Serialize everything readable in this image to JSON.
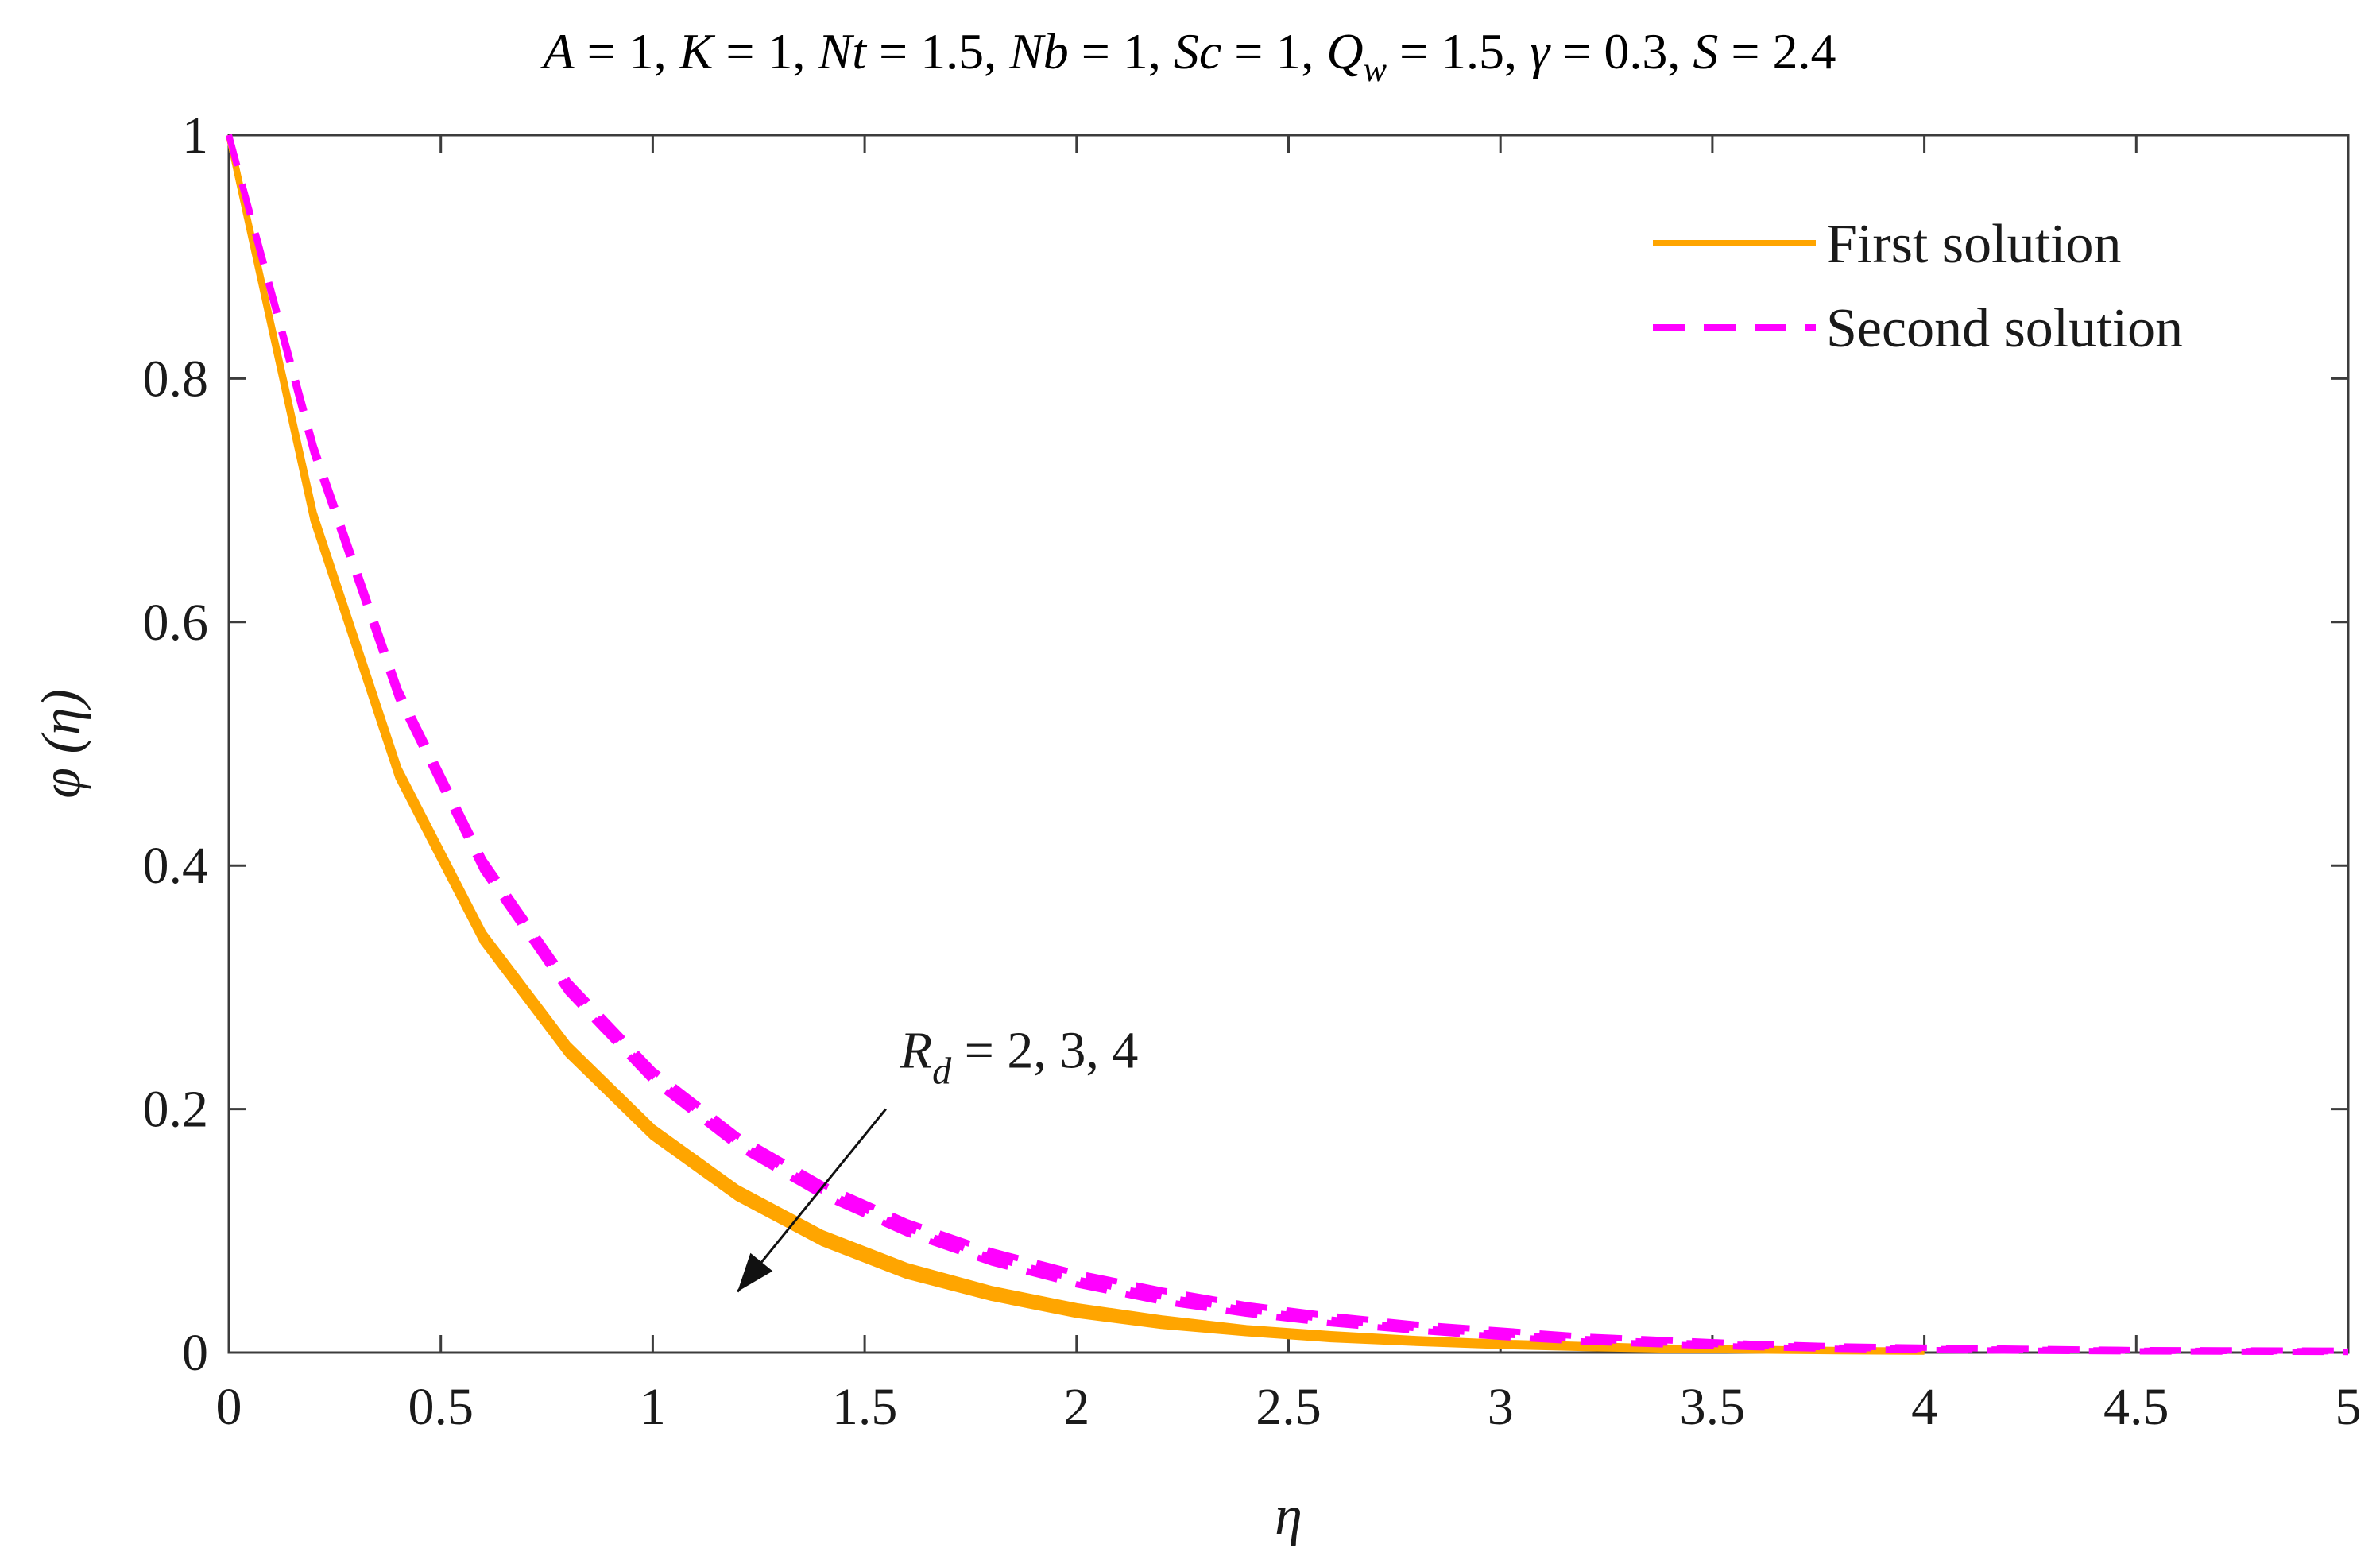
{
  "chart_data": {
    "type": "line",
    "title_parts": [
      {
        "text": "A",
        "italic": true
      },
      {
        "text": " = 1, ",
        "italic": false
      },
      {
        "text": "K",
        "italic": true
      },
      {
        "text": " = 1, ",
        "italic": false
      },
      {
        "text": "Nt",
        "italic": true
      },
      {
        "text": " = 1.5, ",
        "italic": false
      },
      {
        "text": "Nb",
        "italic": true
      },
      {
        "text": " = 1, ",
        "italic": false
      },
      {
        "text": "Sc",
        "italic": true
      },
      {
        "text": " = 1, ",
        "italic": false
      },
      {
        "text": "Q",
        "italic": true
      },
      {
        "text": "w",
        "italic": true,
        "sub": true
      },
      {
        "text": " = 1.5, ",
        "italic": false
      },
      {
        "text": "γ",
        "italic": true
      },
      {
        "text": " = 0.3, ",
        "italic": false
      },
      {
        "text": "S",
        "italic": true
      },
      {
        "text": " = 2.4",
        "italic": false
      }
    ],
    "xlabel": "η",
    "ylabel": "φ (η)",
    "xlim": [
      0,
      5
    ],
    "ylim": [
      0,
      1
    ],
    "xticks": [
      "0",
      "0.5",
      "1",
      "1.5",
      "2",
      "2.5",
      "3",
      "3.5",
      "4",
      "4.5",
      "5"
    ],
    "yticks": [
      "0",
      "0.2",
      "0.4",
      "0.6",
      "0.8",
      "1"
    ],
    "grid": false,
    "legend": {
      "placement": "top-right",
      "entries": [
        {
          "label": "First solution",
          "style": "solid",
          "color": "#FFA500"
        },
        {
          "label": "Second solution",
          "style": "dashed",
          "color": "#FF00FF"
        }
      ]
    },
    "annotation": {
      "label_main": "R",
      "label_sub": "d",
      "label_rest": " = 2, 3, 4",
      "arrow_from": [
        1.55,
        0.2
      ],
      "arrow_to": [
        1.2,
        0.05
      ]
    },
    "series": [
      {
        "group": "First solution",
        "Rd": 2,
        "color": "#FFA500",
        "dash": false,
        "x": [
          0,
          0.2,
          0.4,
          0.6,
          0.8,
          1.0,
          1.2,
          1.4,
          1.6,
          1.8,
          2.0,
          2.2,
          2.4,
          2.6,
          2.8,
          3.0,
          3.2,
          3.4,
          3.6,
          3.8,
          4.0
        ],
        "y": [
          1.0,
          0.69,
          0.48,
          0.345,
          0.253,
          0.185,
          0.135,
          0.098,
          0.071,
          0.052,
          0.038,
          0.028,
          0.02,
          0.015,
          0.011,
          0.008,
          0.006,
          0.004,
          0.003,
          0.002,
          0.0015
        ]
      },
      {
        "group": "First solution",
        "Rd": 3,
        "color": "#FFA500",
        "dash": false,
        "x": [
          0,
          0.2,
          0.4,
          0.6,
          0.8,
          1.0,
          1.2,
          1.4,
          1.6,
          1.8,
          2.0,
          2.2,
          2.4,
          2.6,
          2.8,
          3.0,
          3.2,
          3.4,
          3.6,
          3.8,
          4.0
        ],
        "y": [
          1.0,
          0.686,
          0.476,
          0.341,
          0.249,
          0.181,
          0.131,
          0.094,
          0.067,
          0.048,
          0.034,
          0.025,
          0.018,
          0.013,
          0.009,
          0.0065,
          0.0045,
          0.003,
          0.002,
          0.0015,
          0.001
        ]
      },
      {
        "group": "First solution",
        "Rd": 4,
        "color": "#FFA500",
        "dash": false,
        "x": [
          0,
          0.2,
          0.4,
          0.6,
          0.8,
          1.0,
          1.2,
          1.4,
          1.6,
          1.8,
          2.0,
          2.2,
          2.4,
          2.6,
          2.8,
          3.0,
          3.2,
          3.4,
          3.6,
          3.8,
          4.0
        ],
        "y": [
          1.0,
          0.683,
          0.472,
          0.337,
          0.245,
          0.177,
          0.127,
          0.09,
          0.063,
          0.045,
          0.031,
          0.022,
          0.016,
          0.011,
          0.008,
          0.0055,
          0.0038,
          0.0025,
          0.0017,
          0.0012,
          0.0008
        ]
      },
      {
        "group": "Second solution",
        "Rd": 2,
        "color": "#FF00FF",
        "dash": true,
        "x": [
          0,
          0.2,
          0.4,
          0.6,
          0.8,
          1.0,
          1.2,
          1.4,
          1.6,
          1.8,
          2.0,
          2.2,
          2.4,
          2.6,
          2.8,
          3.0,
          3.2,
          3.4,
          3.6,
          3.8,
          4.0,
          4.5,
          5.0
        ],
        "y": [
          1.0,
          0.745,
          0.545,
          0.405,
          0.305,
          0.232,
          0.178,
          0.138,
          0.107,
          0.083,
          0.065,
          0.051,
          0.039,
          0.03,
          0.023,
          0.018,
          0.013,
          0.01,
          0.007,
          0.005,
          0.004,
          0.002,
          0.0015
        ]
      },
      {
        "group": "Second solution",
        "Rd": 3,
        "color": "#FF00FF",
        "dash": true,
        "x": [
          0,
          0.2,
          0.4,
          0.6,
          0.8,
          1.0,
          1.2,
          1.4,
          1.6,
          1.8,
          2.0,
          2.2,
          2.4,
          2.6,
          2.8,
          3.0,
          3.2,
          3.4,
          3.6,
          3.8,
          4.0,
          4.5,
          5.0
        ],
        "y": [
          1.0,
          0.742,
          0.541,
          0.4,
          0.3,
          0.227,
          0.173,
          0.133,
          0.102,
          0.078,
          0.06,
          0.046,
          0.035,
          0.027,
          0.02,
          0.015,
          0.011,
          0.008,
          0.006,
          0.004,
          0.003,
          0.0015,
          0.001
        ]
      },
      {
        "group": "Second solution",
        "Rd": 4,
        "color": "#FF00FF",
        "dash": true,
        "x": [
          0,
          0.2,
          0.4,
          0.6,
          0.8,
          1.0,
          1.2,
          1.4,
          1.6,
          1.8,
          2.0,
          2.2,
          2.4,
          2.6,
          2.8,
          3.0,
          3.2,
          3.4,
          3.6,
          3.8,
          4.0,
          4.5,
          5.0
        ],
        "y": [
          1.0,
          0.739,
          0.537,
          0.396,
          0.296,
          0.223,
          0.169,
          0.129,
          0.098,
          0.074,
          0.056,
          0.042,
          0.032,
          0.024,
          0.018,
          0.013,
          0.009,
          0.0065,
          0.0045,
          0.003,
          0.002,
          0.001,
          0.0005
        ]
      }
    ]
  }
}
